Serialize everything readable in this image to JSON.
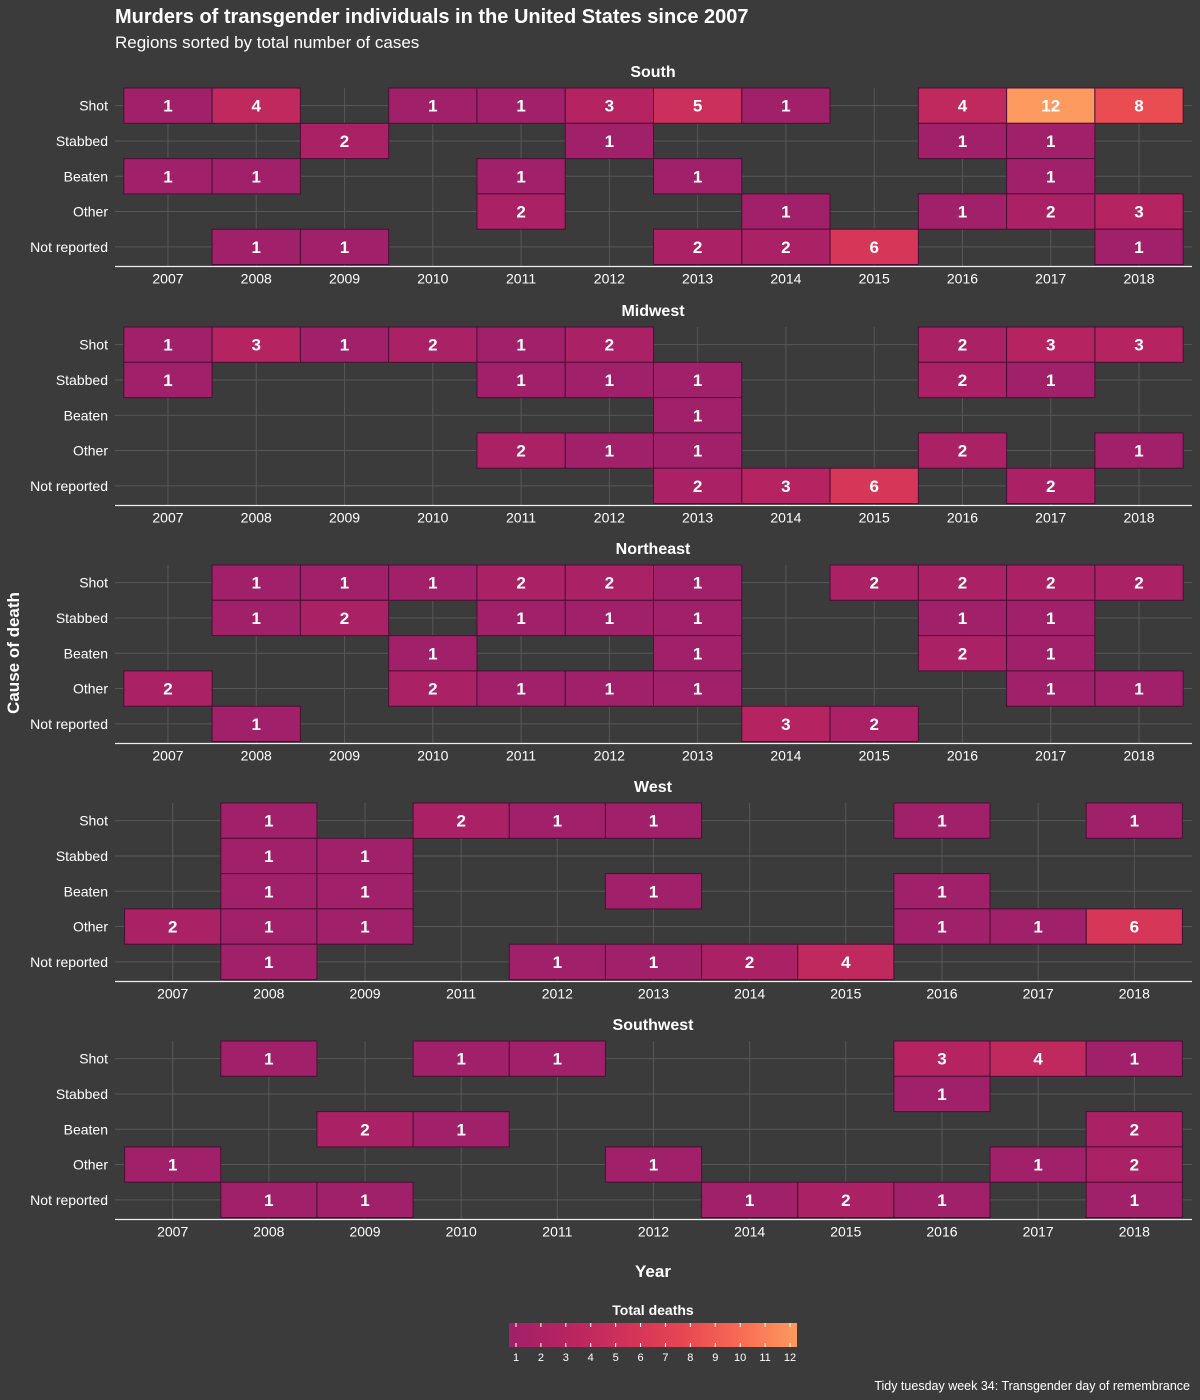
{
  "title": "Murders of transgender individuals in the United States since 2007",
  "subtitle": "Regions sorted by total number of cases",
  "caption": "Tidy tuesday week 34: Transgender day of remembrance",
  "chart_data": {
    "type": "heatmap",
    "title": "Murders of transgender individuals in the United States since 2007",
    "subtitle": "Regions sorted by total number of cases",
    "xlabel": "Year",
    "ylabel": "Cause of death",
    "causes": [
      "Shot",
      "Stabbed",
      "Beaten",
      "Other",
      "Not reported"
    ],
    "legend": {
      "title": "Total deaths",
      "min": 1,
      "max": 12,
      "ticks": [
        1,
        2,
        3,
        4,
        5,
        6,
        7,
        8,
        9,
        10,
        11,
        12
      ],
      "colors": [
        "#a0206a",
        "#b72460",
        "#d0315a",
        "#e64651",
        "#f86a53",
        "#fd9a5f"
      ],
      "position": "bottom"
    },
    "panels": [
      {
        "region": "South",
        "years": [
          "2007",
          "2008",
          "2009",
          "2010",
          "2011",
          "2012",
          "2013",
          "2014",
          "2015",
          "2016",
          "2017",
          "2018"
        ],
        "cells": [
          [
            "2007",
            "Shot",
            1
          ],
          [
            "2008",
            "Shot",
            4
          ],
          [
            "2010",
            "Shot",
            1
          ],
          [
            "2011",
            "Shot",
            1
          ],
          [
            "2012",
            "Shot",
            3
          ],
          [
            "2013",
            "Shot",
            5
          ],
          [
            "2014",
            "Shot",
            1
          ],
          [
            "2016",
            "Shot",
            4
          ],
          [
            "2017",
            "Shot",
            12
          ],
          [
            "2018",
            "Shot",
            8
          ],
          [
            "2009",
            "Stabbed",
            2
          ],
          [
            "2012",
            "Stabbed",
            1
          ],
          [
            "2016",
            "Stabbed",
            1
          ],
          [
            "2017",
            "Stabbed",
            1
          ],
          [
            "2007",
            "Beaten",
            1
          ],
          [
            "2008",
            "Beaten",
            1
          ],
          [
            "2011",
            "Beaten",
            1
          ],
          [
            "2013",
            "Beaten",
            1
          ],
          [
            "2017",
            "Beaten",
            1
          ],
          [
            "2011",
            "Other",
            2
          ],
          [
            "2014",
            "Other",
            1
          ],
          [
            "2016",
            "Other",
            1
          ],
          [
            "2017",
            "Other",
            2
          ],
          [
            "2018",
            "Other",
            3
          ],
          [
            "2008",
            "Not reported",
            1
          ],
          [
            "2009",
            "Not reported",
            1
          ],
          [
            "2013",
            "Not reported",
            2
          ],
          [
            "2014",
            "Not reported",
            2
          ],
          [
            "2015",
            "Not reported",
            6
          ],
          [
            "2018",
            "Not reported",
            1
          ]
        ]
      },
      {
        "region": "Midwest",
        "years": [
          "2007",
          "2008",
          "2009",
          "2010",
          "2011",
          "2012",
          "2013",
          "2014",
          "2015",
          "2016",
          "2017",
          "2018"
        ],
        "cells": [
          [
            "2007",
            "Shot",
            1
          ],
          [
            "2008",
            "Shot",
            3
          ],
          [
            "2009",
            "Shot",
            1
          ],
          [
            "2010",
            "Shot",
            2
          ],
          [
            "2011",
            "Shot",
            1
          ],
          [
            "2012",
            "Shot",
            2
          ],
          [
            "2016",
            "Shot",
            2
          ],
          [
            "2017",
            "Shot",
            3
          ],
          [
            "2018",
            "Shot",
            3
          ],
          [
            "2007",
            "Stabbed",
            1
          ],
          [
            "2011",
            "Stabbed",
            1
          ],
          [
            "2012",
            "Stabbed",
            1
          ],
          [
            "2013",
            "Stabbed",
            1
          ],
          [
            "2016",
            "Stabbed",
            2
          ],
          [
            "2017",
            "Stabbed",
            1
          ],
          [
            "2013",
            "Beaten",
            1
          ],
          [
            "2011",
            "Other",
            2
          ],
          [
            "2012",
            "Other",
            1
          ],
          [
            "2013",
            "Other",
            1
          ],
          [
            "2016",
            "Other",
            2
          ],
          [
            "2018",
            "Other",
            1
          ],
          [
            "2013",
            "Not reported",
            2
          ],
          [
            "2014",
            "Not reported",
            3
          ],
          [
            "2015",
            "Not reported",
            6
          ],
          [
            "2017",
            "Not reported",
            2
          ]
        ]
      },
      {
        "region": "Northeast",
        "years": [
          "2007",
          "2008",
          "2009",
          "2010",
          "2011",
          "2012",
          "2013",
          "2014",
          "2015",
          "2016",
          "2017",
          "2018"
        ],
        "cells": [
          [
            "2008",
            "Shot",
            1
          ],
          [
            "2009",
            "Shot",
            1
          ],
          [
            "2010",
            "Shot",
            1
          ],
          [
            "2011",
            "Shot",
            2
          ],
          [
            "2012",
            "Shot",
            2
          ],
          [
            "2013",
            "Shot",
            1
          ],
          [
            "2015",
            "Shot",
            2
          ],
          [
            "2016",
            "Shot",
            2
          ],
          [
            "2017",
            "Shot",
            2
          ],
          [
            "2018",
            "Shot",
            2
          ],
          [
            "2008",
            "Stabbed",
            1
          ],
          [
            "2009",
            "Stabbed",
            2
          ],
          [
            "2011",
            "Stabbed",
            1
          ],
          [
            "2012",
            "Stabbed",
            1
          ],
          [
            "2013",
            "Stabbed",
            1
          ],
          [
            "2016",
            "Stabbed",
            1
          ],
          [
            "2017",
            "Stabbed",
            1
          ],
          [
            "2010",
            "Beaten",
            1
          ],
          [
            "2013",
            "Beaten",
            1
          ],
          [
            "2016",
            "Beaten",
            2
          ],
          [
            "2017",
            "Beaten",
            1
          ],
          [
            "2007",
            "Other",
            2
          ],
          [
            "2010",
            "Other",
            2
          ],
          [
            "2011",
            "Other",
            1
          ],
          [
            "2012",
            "Other",
            1
          ],
          [
            "2013",
            "Other",
            1
          ],
          [
            "2017",
            "Other",
            1
          ],
          [
            "2018",
            "Other",
            1
          ],
          [
            "2008",
            "Not reported",
            1
          ],
          [
            "2014",
            "Not reported",
            3
          ],
          [
            "2015",
            "Not reported",
            2
          ]
        ]
      },
      {
        "region": "West",
        "years": [
          "2007",
          "2008",
          "2009",
          "2011",
          "2012",
          "2013",
          "2014",
          "2015",
          "2016",
          "2017",
          "2018"
        ],
        "cells": [
          [
            "2008",
            "Shot",
            1
          ],
          [
            "2011",
            "Shot",
            2
          ],
          [
            "2012",
            "Shot",
            1
          ],
          [
            "2013",
            "Shot",
            1
          ],
          [
            "2016",
            "Shot",
            1
          ],
          [
            "2018",
            "Shot",
            1
          ],
          [
            "2008",
            "Stabbed",
            1
          ],
          [
            "2009",
            "Stabbed",
            1
          ],
          [
            "2008",
            "Beaten",
            1
          ],
          [
            "2009",
            "Beaten",
            1
          ],
          [
            "2013",
            "Beaten",
            1
          ],
          [
            "2016",
            "Beaten",
            1
          ],
          [
            "2007",
            "Other",
            2
          ],
          [
            "2008",
            "Other",
            1
          ],
          [
            "2009",
            "Other",
            1
          ],
          [
            "2016",
            "Other",
            1
          ],
          [
            "2017",
            "Other",
            1
          ],
          [
            "2018",
            "Other",
            6
          ],
          [
            "2008",
            "Not reported",
            1
          ],
          [
            "2012",
            "Not reported",
            1
          ],
          [
            "2013",
            "Not reported",
            1
          ],
          [
            "2014",
            "Not reported",
            2
          ],
          [
            "2015",
            "Not reported",
            4
          ]
        ]
      },
      {
        "region": "Southwest",
        "years": [
          "2007",
          "2008",
          "2009",
          "2010",
          "2011",
          "2012",
          "2014",
          "2015",
          "2016",
          "2017",
          "2018"
        ],
        "cells": [
          [
            "2008",
            "Shot",
            1
          ],
          [
            "2010",
            "Shot",
            1
          ],
          [
            "2011",
            "Shot",
            1
          ],
          [
            "2016",
            "Shot",
            3
          ],
          [
            "2017",
            "Shot",
            4
          ],
          [
            "2018",
            "Shot",
            1
          ],
          [
            "2016",
            "Stabbed",
            1
          ],
          [
            "2009",
            "Beaten",
            2
          ],
          [
            "2010",
            "Beaten",
            1
          ],
          [
            "2018",
            "Beaten",
            2
          ],
          [
            "2007",
            "Other",
            1
          ],
          [
            "2012",
            "Other",
            1
          ],
          [
            "2017",
            "Other",
            1
          ],
          [
            "2018",
            "Other",
            2
          ],
          [
            "2008",
            "Not reported",
            1
          ],
          [
            "2009",
            "Not reported",
            1
          ],
          [
            "2014",
            "Not reported",
            1
          ],
          [
            "2015",
            "Not reported",
            2
          ],
          [
            "2016",
            "Not reported",
            1
          ],
          [
            "2018",
            "Not reported",
            1
          ]
        ]
      }
    ]
  }
}
